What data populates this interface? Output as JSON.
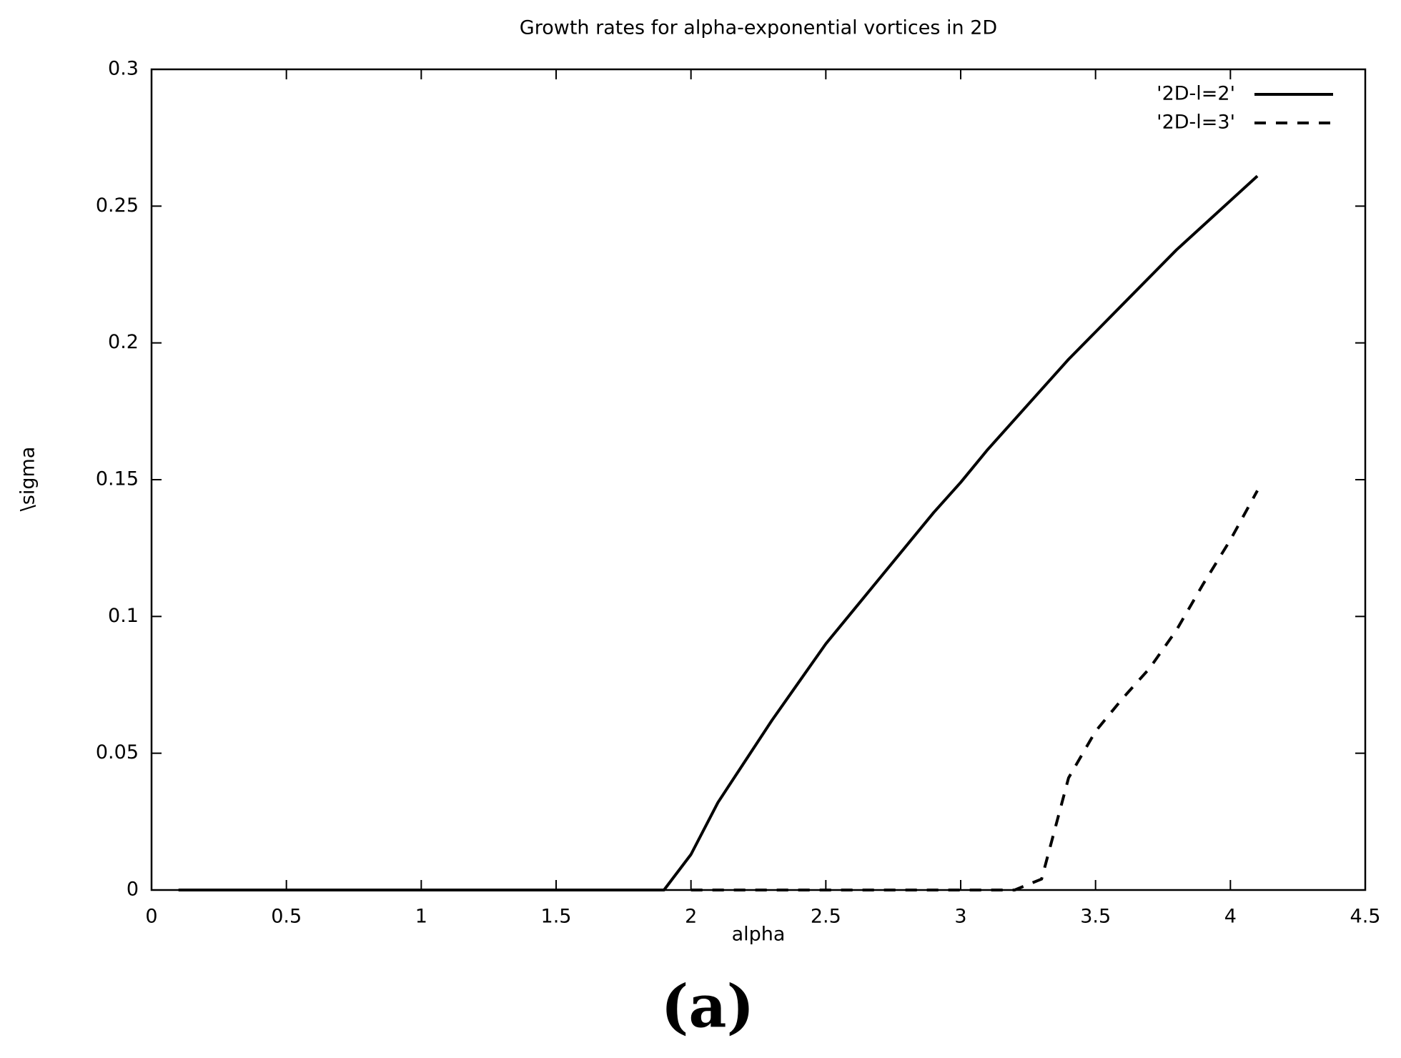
{
  "chart_data": {
    "type": "line",
    "title": "Growth rates for alpha-exponential vortices in 2D",
    "x_label": "alpha",
    "y_label": "\\sigma",
    "caption": "(a)",
    "xlim": [
      0,
      4.5
    ],
    "xticks": [
      0,
      0.5,
      1,
      1.5,
      2,
      2.5,
      3,
      3.5,
      4,
      4.5
    ],
    "ylim": [
      0,
      0.3
    ],
    "yticks": [
      0,
      0.05,
      0.1,
      0.15,
      0.2,
      0.25,
      0.3
    ],
    "grid": false,
    "legend": "top right",
    "series": [
      {
        "name": "'2D-l=2'",
        "color": "#000000",
        "dashed": false,
        "x": [
          0.1,
          0.2,
          0.3,
          0.4,
          0.5,
          0.6,
          0.7,
          0.8,
          0.9,
          1.0,
          1.1,
          1.2,
          1.3,
          1.4,
          1.5,
          1.6,
          1.7,
          1.8,
          1.9,
          2.0,
          2.1,
          2.2,
          2.3,
          2.4,
          2.5,
          2.6,
          2.7,
          2.8,
          2.9,
          3.0,
          3.1,
          3.2,
          3.3,
          3.4,
          3.5,
          3.6,
          3.7,
          3.8,
          3.9,
          4.0,
          4.1
        ],
        "values": [
          0,
          0,
          0,
          0,
          0,
          0,
          0,
          0,
          0,
          0,
          0,
          0,
          0,
          0,
          0,
          0,
          0,
          0,
          0,
          0.013,
          0.032,
          0.047,
          0.062,
          0.076,
          0.09,
          0.102,
          0.114,
          0.126,
          0.138,
          0.149,
          0.161,
          0.172,
          0.183,
          0.194,
          0.204,
          0.214,
          0.224,
          0.234,
          0.243,
          0.252,
          0.261
        ]
      },
      {
        "name": "'2D-l=3'",
        "color": "#000000",
        "dashed": true,
        "x": [
          2.0,
          2.1,
          2.2,
          2.3,
          2.4,
          2.5,
          2.6,
          2.7,
          2.8,
          2.9,
          3.0,
          3.1,
          3.2,
          3.3,
          3.4,
          3.5,
          3.6,
          3.7,
          3.8,
          3.9,
          4.0,
          4.1
        ],
        "values": [
          0,
          0,
          0,
          0,
          0,
          0,
          0,
          0,
          0,
          0,
          0,
          0,
          0,
          0.004,
          0.041,
          0.058,
          0.07,
          0.081,
          0.095,
          0.112,
          0.128,
          0.146
        ]
      }
    ]
  }
}
